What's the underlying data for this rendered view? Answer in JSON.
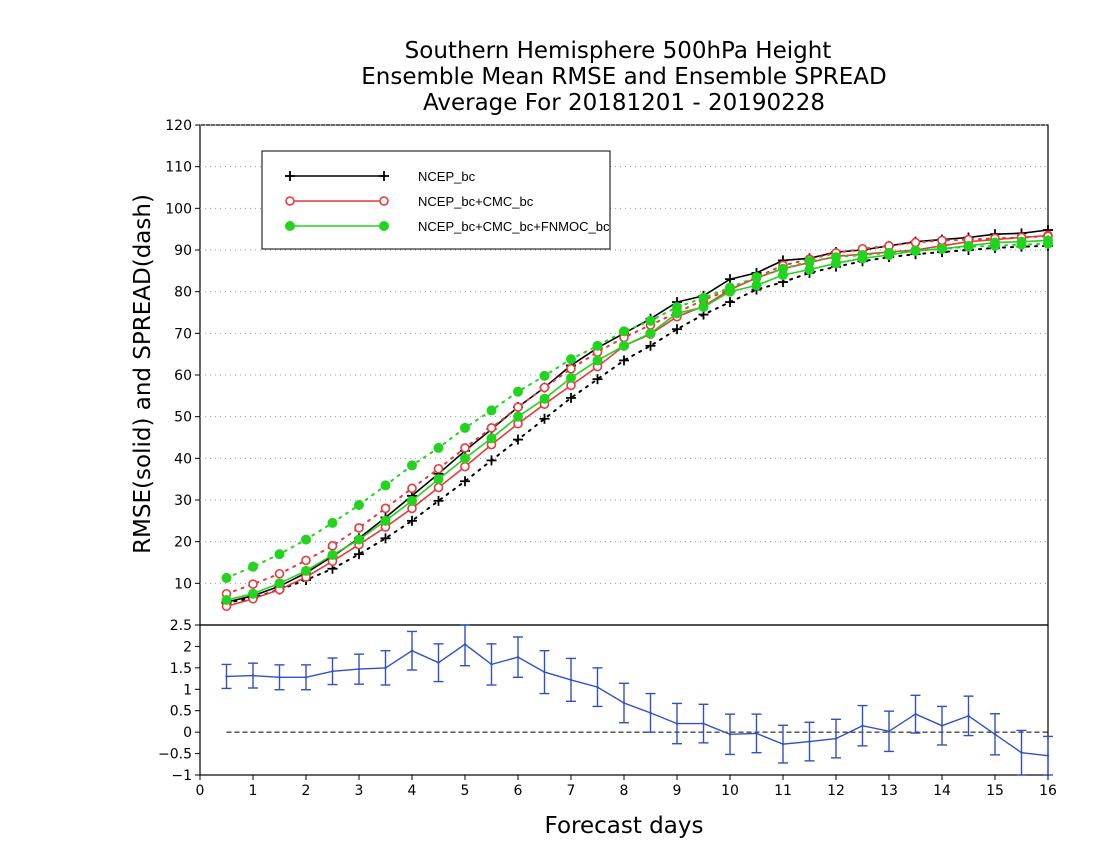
{
  "chart_data": [
    {
      "type": "line",
      "title": [
        "Southern Hemisphere 500hPa Height",
        "Ensemble Mean RMSE and Ensemble SPREAD",
        "Average For 20181201 - 20190228"
      ],
      "xlabel": "Forecast days",
      "ylabel": "RMSE(solid) and SPREAD(dash)",
      "xlim": [
        0,
        16
      ],
      "ylim": [
        0,
        120
      ],
      "x_ticks": [
        0,
        1,
        2,
        3,
        4,
        5,
        6,
        7,
        8,
        9,
        10,
        11,
        12,
        13,
        14,
        15,
        16
      ],
      "y_ticks": [
        10,
        20,
        30,
        40,
        50,
        60,
        70,
        80,
        90,
        100,
        110,
        120
      ],
      "grid": "horizontal dotted",
      "legend_position": "top-left",
      "x": [
        0.5,
        1,
        1.5,
        2,
        2.5,
        3,
        3.5,
        4,
        4.5,
        5,
        5.5,
        6,
        6.5,
        7,
        7.5,
        8,
        8.5,
        9,
        9.5,
        10,
        10.5,
        11,
        11.5,
        12,
        12.5,
        13,
        13.5,
        14,
        14.5,
        15,
        15.5,
        16
      ],
      "series": [
        {
          "name": "NCEP_bc",
          "color": "#000000",
          "marker": "plus",
          "rmse": [
            5.5,
            7.0,
            9.3,
            12.5,
            16.5,
            20.8,
            25.8,
            31.0,
            36.3,
            41.8,
            47.0,
            52.3,
            57.0,
            62.3,
            66.5,
            70.0,
            73.5,
            77.5,
            79.0,
            83.0,
            84.5,
            87.5,
            88.0,
            89.5,
            90.0,
            91.0,
            92.0,
            92.5,
            93.0,
            93.8,
            94.0,
            94.8
          ],
          "spread": [
            5.3,
            6.5,
            8.5,
            10.8,
            13.5,
            17.0,
            20.8,
            25.0,
            29.8,
            34.5,
            39.5,
            44.5,
            49.5,
            54.5,
            59.0,
            63.5,
            67.0,
            71.0,
            74.5,
            77.5,
            80.5,
            82.3,
            84.5,
            86.0,
            87.3,
            88.3,
            89.0,
            89.5,
            90.0,
            90.5,
            90.8,
            91.0
          ]
        },
        {
          "name": "NCEP_bc+CMC_bc",
          "color": "#e8393c",
          "marker": "open-circle",
          "rmse": [
            4.5,
            6.3,
            8.5,
            11.5,
            15.3,
            19.3,
            23.5,
            28.0,
            33.0,
            38.0,
            43.3,
            48.3,
            53.0,
            57.5,
            62.0,
            67.0,
            69.8,
            74.0,
            76.5,
            80.5,
            83.3,
            85.5,
            87.0,
            88.5,
            89.0,
            89.5,
            90.0,
            91.0,
            92.0,
            92.5,
            93.0,
            93.5
          ],
          "spread": [
            7.5,
            9.8,
            12.3,
            15.5,
            19.0,
            23.3,
            28.0,
            32.8,
            37.5,
            42.5,
            47.3,
            52.3,
            57.0,
            61.5,
            65.5,
            69.0,
            72.0,
            75.0,
            78.0,
            80.5,
            83.5,
            86.3,
            87.8,
            89.3,
            90.3,
            91.0,
            91.8,
            92.3,
            92.5,
            92.8,
            93.0,
            93.3
          ]
        },
        {
          "name": "NCEP_bc+CMC_bc+FNMOC_bc",
          "color": "#22d41f",
          "marker": "filled-circle",
          "rmse": [
            6.0,
            7.5,
            10.0,
            13.0,
            16.8,
            20.5,
            25.0,
            29.8,
            35.0,
            40.0,
            44.8,
            50.0,
            54.3,
            59.3,
            63.5,
            67.0,
            70.0,
            74.8,
            76.3,
            80.0,
            81.5,
            84.0,
            85.3,
            86.8,
            88.0,
            88.8,
            89.8,
            90.3,
            91.0,
            91.8,
            92.0,
            92.3
          ],
          "spread": [
            11.3,
            14.0,
            17.0,
            20.5,
            24.5,
            28.8,
            33.5,
            38.3,
            42.5,
            47.3,
            51.5,
            56.0,
            59.8,
            63.8,
            67.0,
            70.5,
            73.0,
            76.3,
            78.5,
            81.0,
            83.5,
            85.5,
            87.3,
            88.3,
            88.8,
            89.3,
            89.8,
            90.3,
            90.8,
            91.0,
            91.3,
            91.5
          ]
        }
      ]
    },
    {
      "type": "line",
      "xlabel": "Forecast days",
      "xlim": [
        0,
        16
      ],
      "ylim": [
        -1,
        2.5
      ],
      "y_ticks": [
        -1,
        -0.5,
        0,
        0.5,
        1,
        1.5,
        2,
        2.5
      ],
      "y_tick_labels": [
        "−1",
        "−0.5",
        "0",
        "0.5",
        "1",
        "1.5",
        "2",
        "2.5"
      ],
      "reference_line": 0,
      "color": "#3050c8",
      "x": [
        0.5,
        1,
        1.5,
        2,
        2.5,
        3,
        3.5,
        4,
        4.5,
        5,
        5.5,
        6,
        6.5,
        7,
        7.5,
        8,
        8.5,
        9,
        9.5,
        10,
        10.5,
        11,
        11.5,
        12,
        12.5,
        13,
        13.5,
        14,
        14.5,
        15,
        15.5,
        16
      ],
      "values": [
        1.3,
        1.32,
        1.28,
        1.28,
        1.42,
        1.47,
        1.5,
        1.9,
        1.62,
        2.05,
        1.58,
        1.75,
        1.4,
        1.22,
        1.05,
        0.68,
        0.45,
        0.2,
        0.2,
        -0.05,
        -0.03,
        -0.28,
        -0.22,
        -0.15,
        0.15,
        0.02,
        0.42,
        0.15,
        0.38,
        -0.05,
        -0.48,
        -0.55
      ],
      "error_lower": [
        1.02,
        1.03,
        0.99,
        0.99,
        1.11,
        1.12,
        1.1,
        1.45,
        1.18,
        1.55,
        1.1,
        1.28,
        0.9,
        0.72,
        0.6,
        0.22,
        0.0,
        -0.27,
        -0.25,
        -0.52,
        -0.48,
        -0.72,
        -0.67,
        -0.6,
        -0.32,
        -0.45,
        -0.02,
        -0.3,
        -0.08,
        -0.53,
        -1.0,
        -1.0
      ],
      "error_upper": [
        1.58,
        1.61,
        1.57,
        1.57,
        1.73,
        1.82,
        1.9,
        2.35,
        2.06,
        2.55,
        2.06,
        2.22,
        1.9,
        1.72,
        1.5,
        1.14,
        0.9,
        0.67,
        0.65,
        0.42,
        0.42,
        0.16,
        0.23,
        0.3,
        0.62,
        0.49,
        0.86,
        0.6,
        0.84,
        0.43,
        0.04,
        -0.1
      ]
    }
  ]
}
